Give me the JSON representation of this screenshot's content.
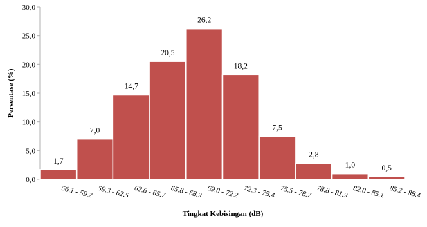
{
  "chart_data": {
    "type": "bar",
    "title": "",
    "xlabel": "Tingkat Kebisingan (dB)",
    "ylabel": "Persentase (%)",
    "ylim": [
      0,
      30
    ],
    "yticks": [
      "0,0",
      "5,0",
      "10,0",
      "15,0",
      "20,0",
      "25,0",
      "30,0"
    ],
    "categories": [
      "56.1 - 59.2",
      "59.3 - 62.5",
      "62.6 - 65.7",
      "65.8 - 68.9",
      "69.0 - 72.2",
      "72.3 - 75.4",
      "75.5 - 78.7",
      "78.8 - 81.9",
      "82.0 - 85.1",
      "85.2 - 88.4"
    ],
    "values": [
      1.7,
      7.0,
      14.7,
      20.5,
      26.2,
      18.2,
      7.5,
      2.8,
      1.0,
      0.5
    ],
    "value_labels": [
      "1,7",
      "7,0",
      "14,7",
      "20,5",
      "26,2",
      "18,2",
      "7,5",
      "2,8",
      "1,0",
      "0,5"
    ],
    "bar_color": "#c0504d",
    "bar_edge_color": "#ffffff",
    "grid": false,
    "legend": "none"
  }
}
